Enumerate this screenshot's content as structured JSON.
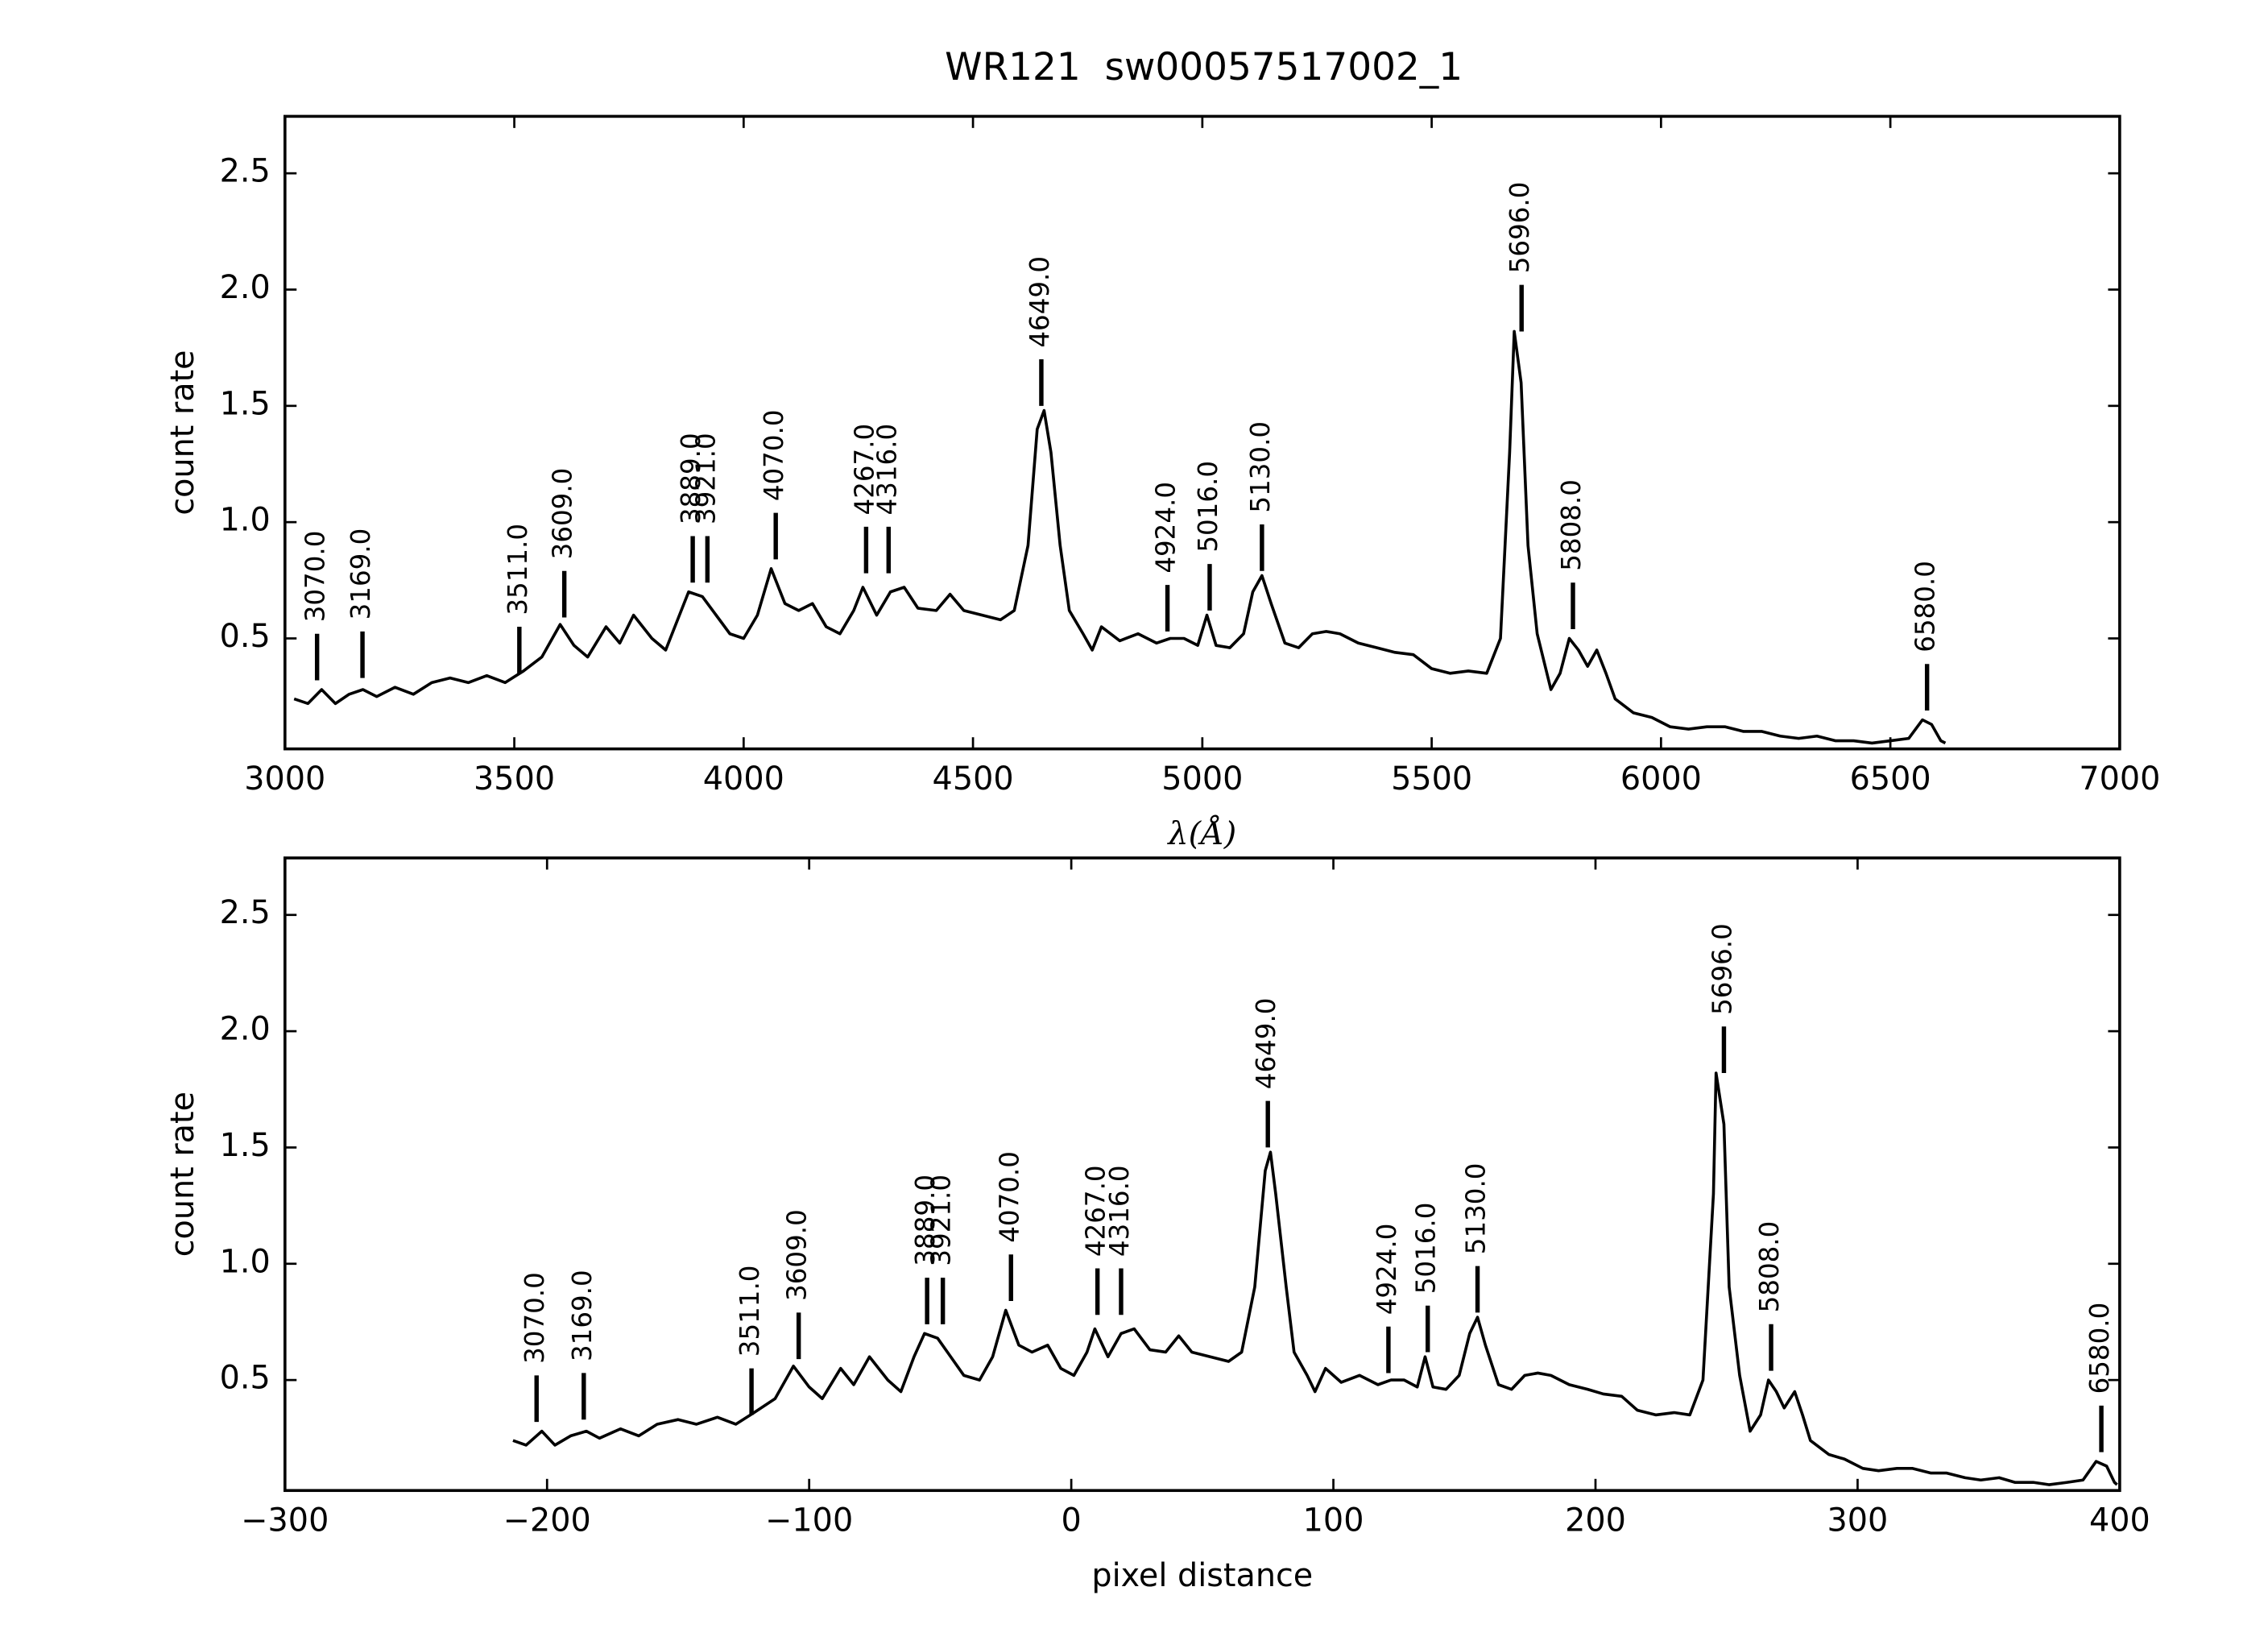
{
  "chart_data": [
    {
      "type": "line",
      "title": "WR121  sw00057517002_1",
      "xlabel": "λ(Å)",
      "ylabel": "count rate",
      "color": "#000000",
      "grid": false,
      "xlim": [
        3000,
        7000
      ],
      "xticks": [
        3000,
        3500,
        4000,
        4500,
        5000,
        5500,
        6000,
        6500,
        7000
      ],
      "ylim": [
        0.025,
        2.745
      ],
      "yticks": [
        0.5,
        {
          "value": 1,
          "label": "1.0"
        },
        1.5,
        {
          "value": 2,
          "label": "2.0"
        },
        2.5
      ],
      "x": [
        3020,
        3050,
        3080,
        3110,
        3140,
        3170,
        3200,
        3240,
        3280,
        3320,
        3360,
        3400,
        3440,
        3480,
        3520,
        3560,
        3600,
        3630,
        3660,
        3700,
        3730,
        3760,
        3800,
        3830,
        3860,
        3880,
        3910,
        3940,
        3970,
        4000,
        4030,
        4060,
        4090,
        4120,
        4150,
        4180,
        4210,
        4240,
        4260,
        4290,
        4320,
        4350,
        4380,
        4420,
        4450,
        4480,
        4520,
        4560,
        4590,
        4620,
        4640,
        4655,
        4670,
        4690,
        4710,
        4740,
        4760,
        4780,
        4820,
        4860,
        4900,
        4930,
        4960,
        4990,
        5010,
        5030,
        5060,
        5090,
        5110,
        5130,
        5150,
        5180,
        5210,
        5240,
        5270,
        5300,
        5340,
        5380,
        5420,
        5460,
        5500,
        5540,
        5580,
        5620,
        5650,
        5670,
        5680,
        5695,
        5710,
        5730,
        5760,
        5780,
        5800,
        5820,
        5840,
        5860,
        5880,
        5900,
        5940,
        5980,
        6020,
        6060,
        6100,
        6140,
        6180,
        6220,
        6260,
        6300,
        6340,
        6380,
        6420,
        6460,
        6500,
        6540,
        6570,
        6590,
        6610,
        6620
      ],
      "values": [
        0.24,
        0.22,
        0.28,
        0.22,
        0.26,
        0.28,
        0.25,
        0.29,
        0.26,
        0.31,
        0.33,
        0.31,
        0.34,
        0.31,
        0.36,
        0.42,
        0.56,
        0.47,
        0.42,
        0.55,
        0.48,
        0.6,
        0.5,
        0.45,
        0.6,
        0.7,
        0.68,
        0.6,
        0.52,
        0.5,
        0.6,
        0.8,
        0.65,
        0.62,
        0.65,
        0.55,
        0.52,
        0.62,
        0.72,
        0.6,
        0.7,
        0.72,
        0.63,
        0.62,
        0.69,
        0.62,
        0.6,
        0.58,
        0.62,
        0.9,
        1.4,
        1.48,
        1.3,
        0.9,
        0.62,
        0.52,
        0.45,
        0.55,
        0.49,
        0.52,
        0.48,
        0.5,
        0.5,
        0.47,
        0.6,
        0.47,
        0.46,
        0.52,
        0.7,
        0.77,
        0.65,
        0.48,
        0.46,
        0.52,
        0.53,
        0.52,
        0.48,
        0.46,
        0.44,
        0.43,
        0.37,
        0.35,
        0.36,
        0.35,
        0.5,
        1.3,
        1.82,
        1.6,
        0.9,
        0.52,
        0.28,
        0.35,
        0.5,
        0.45,
        0.38,
        0.45,
        0.35,
        0.24,
        0.18,
        0.16,
        0.12,
        0.11,
        0.12,
        0.12,
        0.1,
        0.1,
        0.08,
        0.07,
        0.08,
        0.06,
        0.06,
        0.05,
        0.06,
        0.07,
        0.15,
        0.13,
        0.06,
        0.05
      ],
      "annotations": [
        {
          "text": "3070.0",
          "x": 3070,
          "y": 0.32
        },
        {
          "text": "3169.0",
          "x": 3169,
          "y": 0.33
        },
        {
          "text": "3511.0",
          "x": 3511,
          "y": 0.35
        },
        {
          "text": "3609.0",
          "x": 3609,
          "y": 0.59
        },
        {
          "text": "3889.0",
          "x": 3889,
          "y": 0.74
        },
        {
          "text": "3921.0",
          "x": 3921,
          "y": 0.74
        },
        {
          "text": "4070.0",
          "x": 4070,
          "y": 0.84
        },
        {
          "text": "4267.0",
          "x": 4267,
          "y": 0.78
        },
        {
          "text": "4316.0",
          "x": 4316,
          "y": 0.78
        },
        {
          "text": "4649.0",
          "x": 4649,
          "y": 1.5
        },
        {
          "text": "4924.0",
          "x": 4924,
          "y": 0.53
        },
        {
          "text": "5016.0",
          "x": 5016,
          "y": 0.62
        },
        {
          "text": "5130.0",
          "x": 5130,
          "y": 0.79
        },
        {
          "text": "5696.0",
          "x": 5696,
          "y": 1.82
        },
        {
          "text": "5808.0",
          "x": 5808,
          "y": 0.54
        },
        {
          "text": "6580.0",
          "x": 6580,
          "y": 0.19
        }
      ]
    },
    {
      "type": "line",
      "xlabel": "pixel distance",
      "ylabel": "count rate",
      "color": "#000000",
      "grid": false,
      "xlim": [
        -300,
        400
      ],
      "xticks": [
        {
          "value": -300,
          "label": "−300"
        },
        {
          "value": -200,
          "label": "−200"
        },
        {
          "value": -100,
          "label": "−100"
        },
        0,
        100,
        200,
        300,
        400
      ],
      "ylim": [
        0.025,
        2.745
      ],
      "yticks": [
        0.5,
        {
          "value": 1,
          "label": "1.0"
        },
        1.5,
        {
          "value": 2,
          "label": "2.0"
        },
        2.5
      ],
      "x": [
        -213,
        -208,
        -202,
        -197,
        -191,
        -185,
        -180,
        -172,
        -165,
        -158,
        -150,
        -143,
        -135,
        -128,
        -121,
        -113,
        -106,
        -100,
        -95,
        -88,
        -83,
        -77,
        -70,
        -65,
        -60,
        -56,
        -51,
        -46,
        -41,
        -35,
        -30,
        -25,
        -20,
        -15,
        -9,
        -4,
        1,
        6,
        9,
        14,
        19,
        24,
        30,
        36,
        41,
        46,
        53,
        60,
        65,
        70,
        74,
        76,
        78,
        82,
        85,
        90,
        93,
        97,
        103,
        110,
        117,
        122,
        127,
        132,
        135,
        138,
        143,
        148,
        152,
        155,
        158,
        163,
        168,
        173,
        178,
        183,
        190,
        197,
        203,
        210,
        216,
        223,
        230,
        236,
        241,
        245,
        246,
        249,
        251,
        255,
        259,
        263,
        266,
        269,
        272,
        276,
        279,
        282,
        289,
        295,
        302,
        308,
        315,
        321,
        328,
        334,
        341,
        347,
        354,
        360,
        367,
        373,
        380,
        386,
        391,
        395,
        398,
        399
      ],
      "values": [
        0.24,
        0.22,
        0.28,
        0.22,
        0.26,
        0.28,
        0.25,
        0.29,
        0.26,
        0.31,
        0.33,
        0.31,
        0.34,
        0.31,
        0.36,
        0.42,
        0.56,
        0.47,
        0.42,
        0.55,
        0.48,
        0.6,
        0.5,
        0.45,
        0.6,
        0.7,
        0.68,
        0.6,
        0.52,
        0.5,
        0.6,
        0.8,
        0.65,
        0.62,
        0.65,
        0.55,
        0.52,
        0.62,
        0.72,
        0.6,
        0.7,
        0.72,
        0.63,
        0.62,
        0.69,
        0.62,
        0.6,
        0.58,
        0.62,
        0.9,
        1.4,
        1.48,
        1.3,
        0.9,
        0.62,
        0.52,
        0.45,
        0.55,
        0.49,
        0.52,
        0.48,
        0.5,
        0.5,
        0.47,
        0.6,
        0.47,
        0.46,
        0.52,
        0.7,
        0.77,
        0.65,
        0.48,
        0.46,
        0.52,
        0.53,
        0.52,
        0.48,
        0.46,
        0.44,
        0.43,
        0.37,
        0.35,
        0.36,
        0.35,
        0.5,
        1.3,
        1.82,
        1.6,
        0.9,
        0.52,
        0.28,
        0.35,
        0.5,
        0.45,
        0.38,
        0.45,
        0.35,
        0.24,
        0.18,
        0.16,
        0.12,
        0.11,
        0.12,
        0.12,
        0.1,
        0.1,
        0.08,
        0.07,
        0.08,
        0.06,
        0.06,
        0.05,
        0.06,
        0.07,
        0.15,
        0.13,
        0.06,
        0.05
      ],
      "annotations": [
        {
          "text": "3070.0",
          "x": -204,
          "y": 0.32
        },
        {
          "text": "3169.0",
          "x": -186,
          "y": 0.33
        },
        {
          "text": "3511.0",
          "x": -122,
          "y": 0.35
        },
        {
          "text": "3609.0",
          "x": -104,
          "y": 0.59
        },
        {
          "text": "3889.0",
          "x": -55,
          "y": 0.74
        },
        {
          "text": "3921.0",
          "x": -49,
          "y": 0.74
        },
        {
          "text": "4070.0",
          "x": -23,
          "y": 0.84
        },
        {
          "text": "4267.0",
          "x": 10,
          "y": 0.78
        },
        {
          "text": "4316.0",
          "x": 19,
          "y": 0.78
        },
        {
          "text": "4649.0",
          "x": 75,
          "y": 1.5
        },
        {
          "text": "4924.0",
          "x": 121,
          "y": 0.53
        },
        {
          "text": "5016.0",
          "x": 136,
          "y": 0.62
        },
        {
          "text": "5130.0",
          "x": 155,
          "y": 0.79
        },
        {
          "text": "5696.0",
          "x": 249,
          "y": 1.82
        },
        {
          "text": "5808.0",
          "x": 267,
          "y": 0.54
        },
        {
          "text": "6580.0",
          "x": 393,
          "y": 0.19
        }
      ]
    }
  ]
}
